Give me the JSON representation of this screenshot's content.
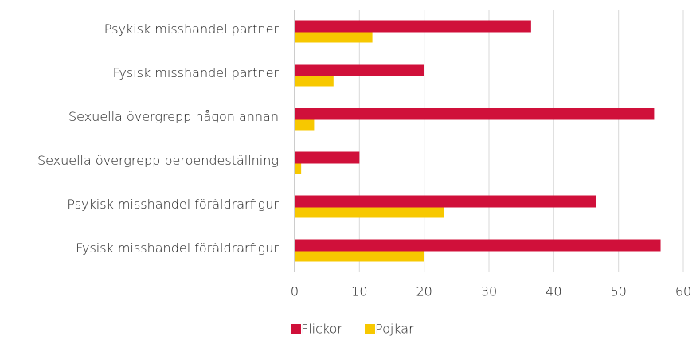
{
  "chart_data": {
    "type": "hbar",
    "categories": [
      "Psykisk misshandel partner",
      "Fysisk misshandel partner",
      "Sexuella övergrepp någon annan",
      "Sexuella övergrepp beroendeställning",
      "Psykisk misshandel föräldrarfigur",
      "Fysisk misshandel föräldrarfigur"
    ],
    "series": [
      {
        "name": "Flickor",
        "color": "#d0103a",
        "values": [
          36.5,
          20,
          55.5,
          10,
          46.5,
          56.5
        ]
      },
      {
        "name": "Pojkar",
        "color": "#f7c800",
        "values": [
          12,
          6,
          3,
          1,
          23,
          20
        ]
      }
    ],
    "xlim": [
      0,
      60
    ],
    "xticks": [
      0,
      10,
      20,
      30,
      40,
      50,
      60
    ],
    "grid": true,
    "legend": "bottom"
  }
}
